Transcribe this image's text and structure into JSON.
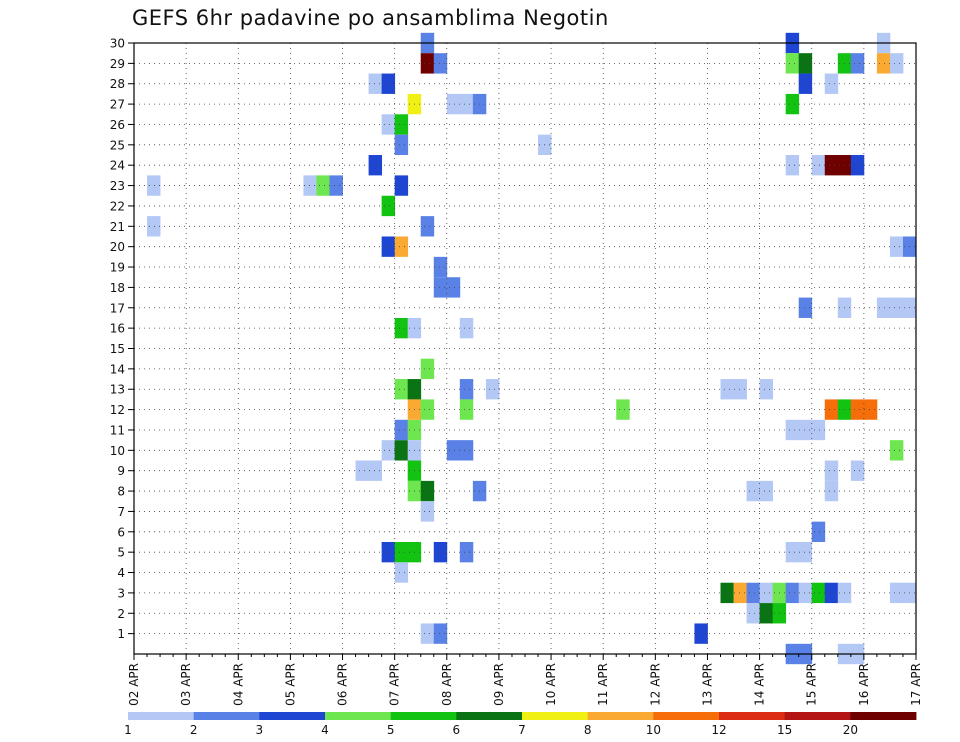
{
  "title": "GEFS 6hr padavine po ansamblima Negotin",
  "chart_data": {
    "type": "heatmap",
    "title": "GEFS 6hr padavine po ansamblima Negotin",
    "xlabel": "",
    "ylabel": "",
    "x_tick_labels": [
      "02 APR",
      "03 APR",
      "04 APR",
      "05 APR",
      "06 APR",
      "07 APR",
      "08 APR",
      "09 APR",
      "10 APR",
      "11 APR",
      "12 APR",
      "13 APR",
      "14 APR",
      "15 APR",
      "16 APR",
      "17 APR"
    ],
    "y_tick_labels": [
      "1",
      "2",
      "3",
      "4",
      "5",
      "6",
      "7",
      "8",
      "9",
      "10",
      "11",
      "12",
      "13",
      "14",
      "15",
      "16",
      "17",
      "18",
      "19",
      "20",
      "21",
      "22",
      "23",
      "24",
      "25",
      "26",
      "27",
      "28",
      "29",
      "30"
    ],
    "x_unit": "6h step from 02 APR 00Z",
    "xlim": [
      0,
      60
    ],
    "ylim": [
      0,
      30
    ],
    "grid": true,
    "colorbar": {
      "labels": [
        "1",
        "2",
        "3",
        "4",
        "5",
        "6",
        "7",
        "8",
        "10",
        "12",
        "15",
        "20"
      ],
      "colors": [
        "#b4c8f5",
        "#5a82e6",
        "#1e46d2",
        "#6ee650",
        "#12c312",
        "#0a7314",
        "#f0f014",
        "#faaa32",
        "#f56e0a",
        "#dc2d14",
        "#b41414",
        "#6e0000"
      ]
    },
    "cells": [
      {
        "t": 1,
        "m": 21,
        "v": 1
      },
      {
        "t": 1,
        "m": 23,
        "v": 1
      },
      {
        "t": 13,
        "m": 23,
        "v": 1
      },
      {
        "t": 14,
        "m": 23,
        "v": 4
      },
      {
        "t": 15,
        "m": 23,
        "v": 2
      },
      {
        "t": 18,
        "m": 28,
        "v": 1
      },
      {
        "t": 19,
        "m": 28,
        "v": 3
      },
      {
        "t": 18,
        "m": 24,
        "v": 3
      },
      {
        "t": 17,
        "m": 9,
        "v": 1
      },
      {
        "t": 18,
        "m": 9,
        "v": 1
      },
      {
        "t": 19,
        "m": 20,
        "v": 3
      },
      {
        "t": 20,
        "m": 20,
        "v": 8
      },
      {
        "t": 19,
        "m": 22,
        "v": 5
      },
      {
        "t": 19,
        "m": 26,
        "v": 1
      },
      {
        "t": 20,
        "m": 26,
        "v": 5
      },
      {
        "t": 19,
        "m": 10,
        "v": 1
      },
      {
        "t": 20,
        "m": 10,
        "v": 6
      },
      {
        "t": 19,
        "m": 5,
        "v": 3
      },
      {
        "t": 20,
        "m": 5,
        "v": 5
      },
      {
        "t": 21,
        "m": 5,
        "v": 5
      },
      {
        "t": 20,
        "m": 23,
        "v": 3
      },
      {
        "t": 20,
        "m": 25,
        "v": 2
      },
      {
        "t": 20,
        "m": 16,
        "v": 5
      },
      {
        "t": 21,
        "m": 16,
        "v": 1
      },
      {
        "t": 20,
        "m": 13,
        "v": 4
      },
      {
        "t": 21,
        "m": 13,
        "v": 6
      },
      {
        "t": 20,
        "m": 11,
        "v": 2
      },
      {
        "t": 21,
        "m": 11,
        "v": 4
      },
      {
        "t": 20,
        "m": 4,
        "v": 1
      },
      {
        "t": 21,
        "m": 27,
        "v": 7
      },
      {
        "t": 21,
        "m": 12,
        "v": 8
      },
      {
        "t": 22,
        "m": 12,
        "v": 4
      },
      {
        "t": 21,
        "m": 10,
        "v": 1
      },
      {
        "t": 21,
        "m": 9,
        "v": 5
      },
      {
        "t": 21,
        "m": 8,
        "v": 4
      },
      {
        "t": 22,
        "m": 8,
        "v": 6
      },
      {
        "t": 22,
        "m": 30,
        "v": 2
      },
      {
        "t": 22,
        "m": 29,
        "v": 20
      },
      {
        "t": 23,
        "m": 29,
        "v": 2
      },
      {
        "t": 22,
        "m": 21,
        "v": 2
      },
      {
        "t": 22,
        "m": 14,
        "v": 4
      },
      {
        "t": 22,
        "m": 7,
        "v": 1
      },
      {
        "t": 22,
        "m": 1,
        "v": 1
      },
      {
        "t": 23,
        "m": 1,
        "v": 2
      },
      {
        "t": 23,
        "m": 5,
        "v": 3
      },
      {
        "t": 23,
        "m": 19,
        "v": 2
      },
      {
        "t": 23,
        "m": 18,
        "v": 2
      },
      {
        "t": 24,
        "m": 18,
        "v": 2
      },
      {
        "t": 24,
        "m": 27,
        "v": 1
      },
      {
        "t": 25,
        "m": 27,
        "v": 1
      },
      {
        "t": 26,
        "m": 27,
        "v": 2
      },
      {
        "t": 24,
        "m": 10,
        "v": 2
      },
      {
        "t": 25,
        "m": 10,
        "v": 2
      },
      {
        "t": 25,
        "m": 16,
        "v": 1
      },
      {
        "t": 25,
        "m": 13,
        "v": 2
      },
      {
        "t": 25,
        "m": 12,
        "v": 4
      },
      {
        "t": 25,
        "m": 5,
        "v": 2
      },
      {
        "t": 26,
        "m": 8,
        "v": 2
      },
      {
        "t": 27,
        "m": 13,
        "v": 1
      },
      {
        "t": 31,
        "m": 25,
        "v": 1
      },
      {
        "t": 37,
        "m": 12,
        "v": 4
      },
      {
        "t": 43,
        "m": 1,
        "v": 3
      },
      {
        "t": 45,
        "m": 3,
        "v": 6
      },
      {
        "t": 46,
        "m": 3,
        "v": 8
      },
      {
        "t": 47,
        "m": 3,
        "v": 2
      },
      {
        "t": 48,
        "m": 3,
        "v": 1
      },
      {
        "t": 49,
        "m": 3,
        "v": 4
      },
      {
        "t": 50,
        "m": 3,
        "v": 2
      },
      {
        "t": 51,
        "m": 3,
        "v": 1
      },
      {
        "t": 52,
        "m": 3,
        "v": 5
      },
      {
        "t": 53,
        "m": 3,
        "v": 3
      },
      {
        "t": 54,
        "m": 3,
        "v": 1
      },
      {
        "t": 58,
        "m": 3,
        "v": 1
      },
      {
        "t": 59,
        "m": 3,
        "v": 1
      },
      {
        "t": 45,
        "m": 13,
        "v": 1
      },
      {
        "t": 46,
        "m": 13,
        "v": 1
      },
      {
        "t": 47,
        "m": 8,
        "v": 1
      },
      {
        "t": 48,
        "m": 8,
        "v": 1
      },
      {
        "t": 47,
        "m": 2,
        "v": 1
      },
      {
        "t": 48,
        "m": 2,
        "v": 6
      },
      {
        "t": 49,
        "m": 2,
        "v": 5
      },
      {
        "t": 48,
        "m": 13,
        "v": 1
      },
      {
        "t": 50,
        "m": 30,
        "v": 3
      },
      {
        "t": 50,
        "m": 29,
        "v": 4
      },
      {
        "t": 51,
        "m": 29,
        "v": 6
      },
      {
        "t": 50,
        "m": 27,
        "v": 5
      },
      {
        "t": 50,
        "m": 24,
        "v": 1
      },
      {
        "t": 50,
        "m": 11,
        "v": 1
      },
      {
        "t": 51,
        "m": 11,
        "v": 1
      },
      {
        "t": 52,
        "m": 11,
        "v": 1
      },
      {
        "t": 50,
        "m": 5,
        "v": 1
      },
      {
        "t": 51,
        "m": 5,
        "v": 1
      },
      {
        "t": 50,
        "m": 0,
        "v": 2
      },
      {
        "t": 51,
        "m": 0,
        "v": 2
      },
      {
        "t": 51,
        "m": 28,
        "v": 3
      },
      {
        "t": 51,
        "m": 17,
        "v": 2
      },
      {
        "t": 52,
        "m": 6,
        "v": 2
      },
      {
        "t": 52,
        "m": 24,
        "v": 1
      },
      {
        "t": 53,
        "m": 28,
        "v": 1
      },
      {
        "t": 53,
        "m": 24,
        "v": 20
      },
      {
        "t": 54,
        "m": 24,
        "v": 20
      },
      {
        "t": 55,
        "m": 24,
        "v": 3
      },
      {
        "t": 53,
        "m": 12,
        "v": 10
      },
      {
        "t": 54,
        "m": 12,
        "v": 5
      },
      {
        "t": 55,
        "m": 12,
        "v": 10
      },
      {
        "t": 56,
        "m": 12,
        "v": 10
      },
      {
        "t": 53,
        "m": 9,
        "v": 1
      },
      {
        "t": 53,
        "m": 8,
        "v": 1
      },
      {
        "t": 54,
        "m": 29,
        "v": 5
      },
      {
        "t": 55,
        "m": 29,
        "v": 2
      },
      {
        "t": 54,
        "m": 17,
        "v": 1
      },
      {
        "t": 54,
        "m": 0,
        "v": 1
      },
      {
        "t": 55,
        "m": 0,
        "v": 1
      },
      {
        "t": 55,
        "m": 9,
        "v": 1
      },
      {
        "t": 57,
        "m": 30,
        "v": 1
      },
      {
        "t": 57,
        "m": 29,
        "v": 8
      },
      {
        "t": 58,
        "m": 29,
        "v": 1
      },
      {
        "t": 57,
        "m": 17,
        "v": 1
      },
      {
        "t": 58,
        "m": 17,
        "v": 1
      },
      {
        "t": 59,
        "m": 17,
        "v": 1
      },
      {
        "t": 58,
        "m": 10,
        "v": 4
      },
      {
        "t": 58,
        "m": 20,
        "v": 1
      },
      {
        "t": 59,
        "m": 20,
        "v": 2
      }
    ]
  }
}
